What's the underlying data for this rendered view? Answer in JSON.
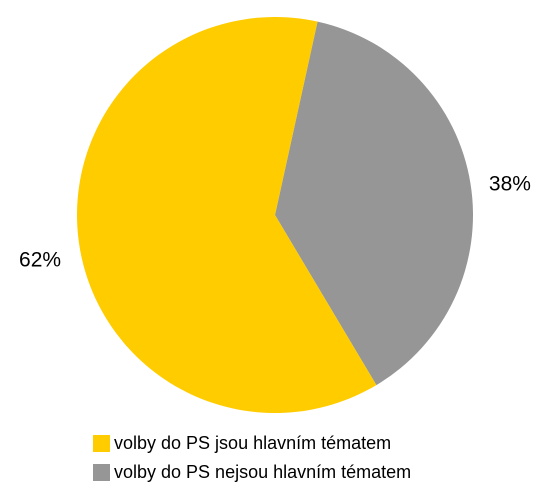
{
  "chart_data": {
    "type": "pie",
    "categories": [
      "volby do PS jsou hlavním tématem",
      "volby do PS nejsou hlavním tématem"
    ],
    "values": [
      62,
      38
    ],
    "value_labels": [
      "62%",
      "38%"
    ],
    "colors": [
      "#ffcc00",
      "#969696"
    ],
    "legend": "bottom"
  }
}
